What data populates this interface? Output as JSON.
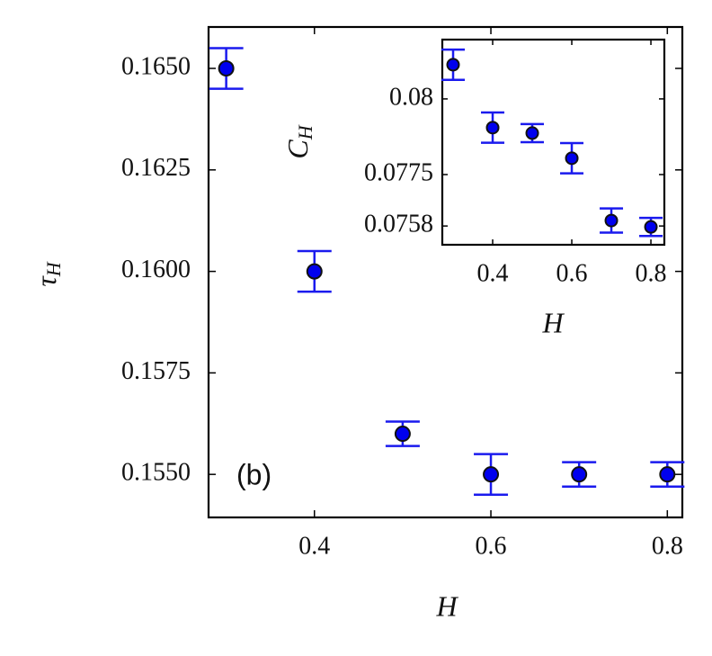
{
  "chart_data": [
    {
      "type": "errorbar-scatter",
      "x": [
        0.3,
        0.4,
        0.5,
        0.6,
        0.7,
        0.8
      ],
      "values": [
        0.165,
        0.16,
        0.156,
        0.155,
        0.155,
        0.155
      ],
      "errors": [
        0.0005,
        0.0005,
        0.0003,
        0.0005,
        0.0003,
        0.0003
      ],
      "color": "#0000ee",
      "errorbar_color": "#1a1aee",
      "xlim": [
        0.28,
        0.817
      ],
      "ylim": [
        0.15394,
        0.16602
      ],
      "xticks": [
        0.4,
        0.6,
        0.8
      ],
      "yticks": [
        {
          "value": 0.155,
          "label": "0.1550"
        },
        {
          "value": 0.1575,
          "label": "0.1575"
        },
        {
          "value": 0.16,
          "label": "0.1600"
        },
        {
          "value": 0.1625,
          "label": "0.1625"
        },
        {
          "value": 0.165,
          "label": "0.1650"
        }
      ],
      "xlabel": "H",
      "ylabel": {
        "base": "τ",
        "sub": "H"
      },
      "annotation": "(b)"
    },
    {
      "type": "errorbar-scatter",
      "x": [
        0.3,
        0.4,
        0.5,
        0.6,
        0.7,
        0.8
      ],
      "values": [
        0.08113,
        0.07905,
        0.07887,
        0.07804,
        0.07598,
        0.07577
      ],
      "errors": [
        0.0005,
        0.0005,
        0.0003,
        0.0005,
        0.0004,
        0.0003
      ],
      "color": "#0000ee",
      "errorbar_color": "#1a1aee",
      "xlim": [
        0.2727,
        0.834
      ],
      "ylim": [
        0.07518,
        0.08196
      ],
      "xticks": [
        0.4,
        0.6,
        0.8
      ],
      "yticks": [
        0.0758,
        0.0775,
        0.08
      ],
      "xlabel": "H",
      "ylabel": {
        "base": "C",
        "sub": "H"
      }
    }
  ]
}
